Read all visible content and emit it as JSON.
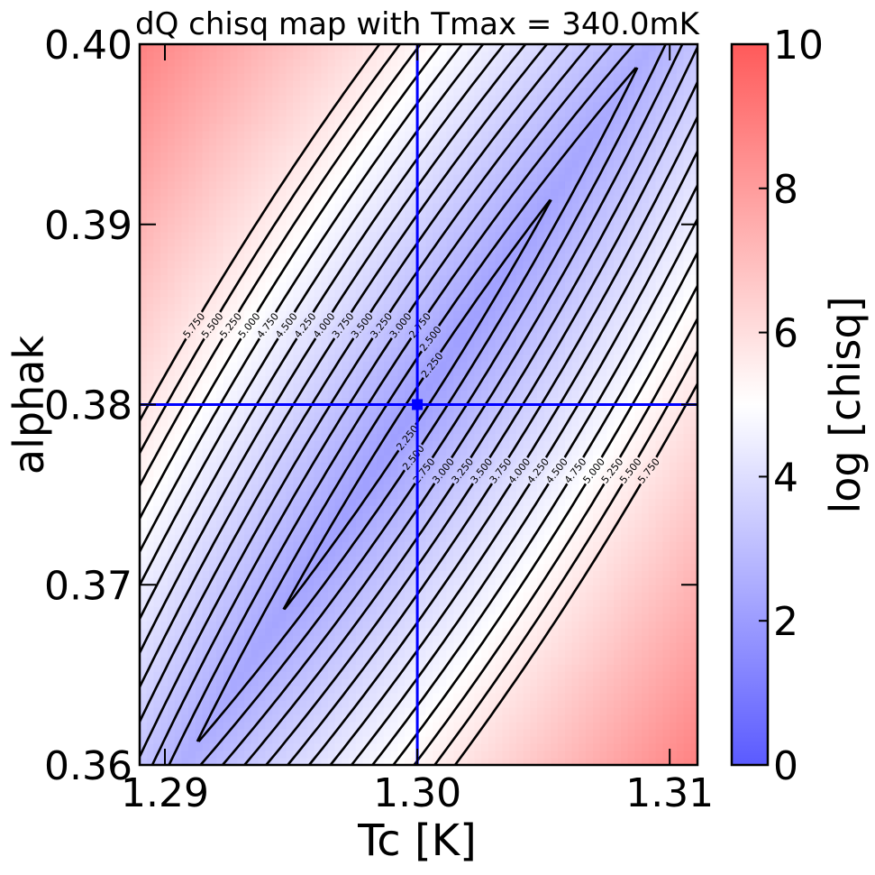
{
  "chart_data": {
    "type": "heatmap",
    "title": "dQ chisq map with Tmax = 340.0mK",
    "xlabel": "Tc [K]",
    "ylabel": "alphak",
    "colorbar_label": "log [chisq]",
    "xlim": [
      1.289,
      1.3111
    ],
    "ylim": [
      0.36,
      0.4
    ],
    "xticks": [
      {
        "value": 1.29,
        "label": "1.29"
      },
      {
        "value": 1.3,
        "label": "1.30"
      },
      {
        "value": 1.31,
        "label": "1.31"
      }
    ],
    "yticks": [
      {
        "value": 0.36,
        "label": "0.36"
      },
      {
        "value": 0.37,
        "label": "0.37"
      },
      {
        "value": 0.38,
        "label": "0.38"
      },
      {
        "value": 0.39,
        "label": "0.39"
      },
      {
        "value": 0.4,
        "label": "0.40"
      }
    ],
    "colorbar_range": [
      0,
      10
    ],
    "colorbar_ticks": [
      {
        "value": 0,
        "label": "0"
      },
      {
        "value": 2,
        "label": "2"
      },
      {
        "value": 4,
        "label": "4"
      },
      {
        "value": 6,
        "label": "6"
      },
      {
        "value": 8,
        "label": "8"
      },
      {
        "value": 10,
        "label": "10"
      }
    ],
    "colormap": {
      "low": "#5a5aff",
      "mid": "#ffffff",
      "high": "#ff5a5a"
    },
    "contour_levels": [
      2.25,
      2.5,
      2.75,
      3.0,
      3.25,
      3.5,
      3.75,
      4.0,
      4.25,
      4.5,
      4.75,
      5.0,
      5.25,
      5.5,
      5.75
    ],
    "contour_labels": [
      "2.250",
      "2.500",
      "2.750",
      "3.000",
      "3.250",
      "3.500",
      "3.750",
      "4.000",
      "4.250",
      "4.500",
      "4.750",
      "5.000",
      "5.250",
      "5.500",
      "5.750"
    ],
    "minimum_valley_value": 2.1,
    "best_fit": {
      "Tc": 1.3,
      "alphak": 0.38
    },
    "marker_color": "#0000ff",
    "grid": false
  }
}
